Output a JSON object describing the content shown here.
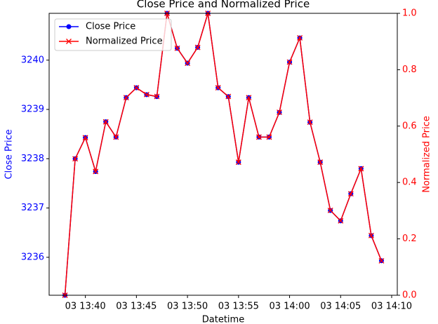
{
  "chart_data": {
    "type": "line",
    "title": "Close Price and Normalized Price",
    "xlabel": "Datetime",
    "ylabel": "Close Price",
    "y2label": "Normalized Price",
    "x": [
      "03 13:38",
      "03 13:39",
      "03 13:40",
      "03 13:41",
      "03 13:42",
      "03 13:43",
      "03 13:44",
      "03 13:45",
      "03 13:46",
      "03 13:47",
      "03 13:48",
      "03 13:49",
      "03 13:50",
      "03 13:51",
      "03 13:52",
      "03 13:53",
      "03 13:54",
      "03 13:55",
      "03 13:56",
      "03 13:57",
      "03 13:58",
      "03 13:59",
      "03 14:00",
      "03 14:01",
      "03 14:02",
      "03 14:03",
      "03 14:04",
      "03 14:05",
      "03 14:06",
      "03 14:07",
      "03 14:08",
      "03 14:09"
    ],
    "series": [
      {
        "name": "Close Price",
        "color": "#0000ff",
        "marker": "o",
        "axis": "y",
        "values": [
          3235.23,
          3238.0,
          3238.43,
          3237.74,
          3238.75,
          3238.44,
          3239.24,
          3239.44,
          3239.3,
          3239.26,
          3240.95,
          3240.24,
          3239.94,
          3240.26,
          3240.95,
          3239.44,
          3239.26,
          3237.93,
          3239.24,
          3238.44,
          3238.44,
          3238.94,
          3239.96,
          3240.45,
          3238.74,
          3237.93,
          3236.95,
          3236.74,
          3237.29,
          3237.8,
          3236.44,
          3235.93
        ]
      },
      {
        "name": "Normalized Price",
        "color": "#ff0000",
        "marker": "x",
        "axis": "y2",
        "values": [
          0,
          0.484,
          0.559,
          0.439,
          0.615,
          0.561,
          0.701,
          0.736,
          0.712,
          0.705,
          1,
          0.876,
          0.823,
          0.879,
          1,
          0.736,
          0.705,
          0.472,
          0.701,
          0.561,
          0.561,
          0.649,
          0.827,
          0.913,
          0.614,
          0.472,
          0.301,
          0.264,
          0.36,
          0.449,
          0.212,
          0.122
        ]
      }
    ],
    "xlim": [
      "03 13:36:27",
      "03 14:10:33"
    ],
    "xticks": [
      "03 13:40",
      "03 13:45",
      "03 13:50",
      "03 13:55",
      "03 14:00",
      "03 14:05",
      "03 14:10"
    ],
    "ylim": [
      3235.23,
      3240.95
    ],
    "yticks": [
      3236,
      3237,
      3238,
      3239,
      3240
    ],
    "y2lim": [
      0,
      1
    ],
    "y2ticks": [
      {
        "value": 0,
        "label": "0.0"
      },
      0.2,
      0.4,
      0.6,
      0.8,
      {
        "value": 1,
        "label": "1.0"
      }
    ],
    "legend": "upper left"
  }
}
